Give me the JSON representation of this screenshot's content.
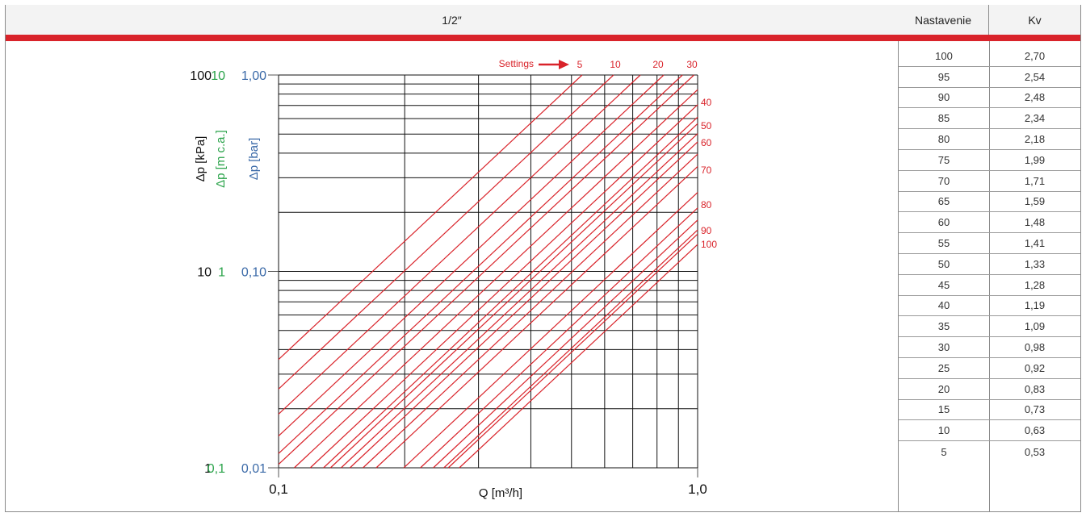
{
  "header": {
    "title": "1/2″",
    "col_setting": "Nastavenie",
    "col_kv": "Kv"
  },
  "table": {
    "rows": [
      {
        "setting": "100",
        "kv": "2,70"
      },
      {
        "setting": "95",
        "kv": "2,54"
      },
      {
        "setting": "90",
        "kv": "2,48"
      },
      {
        "setting": "85",
        "kv": "2,34"
      },
      {
        "setting": "80",
        "kv": "2,18"
      },
      {
        "setting": "75",
        "kv": "1,99"
      },
      {
        "setting": "70",
        "kv": "1,71"
      },
      {
        "setting": "65",
        "kv": "1,59"
      },
      {
        "setting": "60",
        "kv": "1,48"
      },
      {
        "setting": "55",
        "kv": "1,41"
      },
      {
        "setting": "50",
        "kv": "1,33"
      },
      {
        "setting": "45",
        "kv": "1,28"
      },
      {
        "setting": "40",
        "kv": "1,19"
      },
      {
        "setting": "35",
        "kv": "1,09"
      },
      {
        "setting": "30",
        "kv": "0,98"
      },
      {
        "setting": "25",
        "kv": "0,92"
      },
      {
        "setting": "20",
        "kv": "0,83"
      },
      {
        "setting": "15",
        "kv": "0,73"
      },
      {
        "setting": "10",
        "kv": "0,63"
      },
      {
        "setting": "5",
        "kv": "0,53"
      }
    ]
  },
  "colors": {
    "accent_red": "#d9232a",
    "kpa_black": "#111111",
    "mca_green": "#2aa34a",
    "bar_blue": "#3b6aa8",
    "grid": "#111111"
  },
  "chart_data": {
    "type": "line",
    "x_scale": "log",
    "y_scale": "log",
    "xlim": [
      0.1,
      1.0
    ],
    "ylim": [
      1,
      100
    ],
    "grid": true,
    "xlabel": "Q [m³/h]",
    "x_tick_labels": [
      {
        "value": 0.1,
        "label": "0,1"
      },
      {
        "value": 1.0,
        "label": "1,0"
      }
    ],
    "y_axes": [
      {
        "label": "Δp [kPa]",
        "color": "#111111",
        "ticks": [
          {
            "value": 100,
            "label": "100"
          },
          {
            "value": 10,
            "label": "10"
          },
          {
            "value": 1,
            "label": "1"
          }
        ]
      },
      {
        "label": "Δp [m c.a.]",
        "color": "#2aa34a",
        "ticks": [
          {
            "value": 100,
            "label": "10"
          },
          {
            "value": 10,
            "label": "1"
          },
          {
            "value": 1,
            "label": "0,1"
          }
        ]
      },
      {
        "label": "Δp [bar]",
        "color": "#3b6aa8",
        "ticks": [
          {
            "value": 100,
            "label": "1,00"
          },
          {
            "value": 10,
            "label": "0,10"
          },
          {
            "value": 1,
            "label": "0,01"
          }
        ]
      }
    ],
    "annotation": "Settings",
    "top_setting_labels": [
      "5",
      "10",
      "20",
      "30"
    ],
    "right_setting_labels": [
      "40",
      "50",
      "60",
      "70",
      "80",
      "90",
      "100"
    ],
    "series": [
      {
        "setting": 5,
        "kv": 0.53
      },
      {
        "setting": 10,
        "kv": 0.63
      },
      {
        "setting": 15,
        "kv": 0.73
      },
      {
        "setting": 20,
        "kv": 0.83
      },
      {
        "setting": 25,
        "kv": 0.92
      },
      {
        "setting": 30,
        "kv": 0.98
      },
      {
        "setting": 35,
        "kv": 1.09
      },
      {
        "setting": 40,
        "kv": 1.19
      },
      {
        "setting": 45,
        "kv": 1.28
      },
      {
        "setting": 50,
        "kv": 1.33
      },
      {
        "setting": 55,
        "kv": 1.41
      },
      {
        "setting": 60,
        "kv": 1.48
      },
      {
        "setting": 65,
        "kv": 1.59
      },
      {
        "setting": 70,
        "kv": 1.71
      },
      {
        "setting": 75,
        "kv": 1.99
      },
      {
        "setting": 80,
        "kv": 2.18
      },
      {
        "setting": 85,
        "kv": 2.34
      },
      {
        "setting": 90,
        "kv": 2.48
      },
      {
        "setting": 95,
        "kv": 2.54
      },
      {
        "setting": 100,
        "kv": 2.7
      }
    ]
  }
}
